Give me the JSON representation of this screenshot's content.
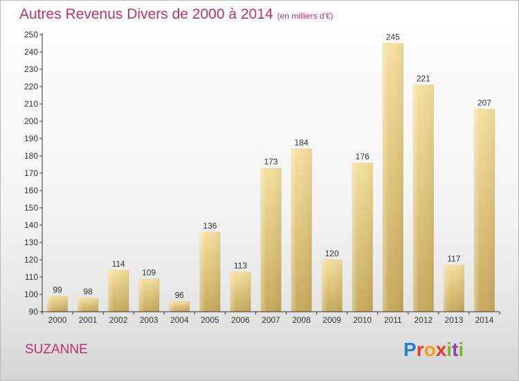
{
  "title": {
    "main": "Autres Revenus Divers de 2000 à 2014",
    "sub": "(en milliers d'€)"
  },
  "location": "SUZANNE",
  "logo": {
    "p": "P",
    "r": "r",
    "o": "o",
    "x": "x",
    "i": "i",
    "t": "t",
    "i2": "i"
  },
  "colors": {
    "title": "#c0306a",
    "bar_light": "#f3dc98",
    "bar_dark": "#c9ac62",
    "axis": "#333333"
  },
  "chart_data": {
    "type": "bar",
    "title": "Autres Revenus Divers de 2000 à 2014",
    "subtitle": "(en milliers d'€)",
    "categories": [
      "2000",
      "2001",
      "2002",
      "2003",
      "2004",
      "2005",
      "2006",
      "2007",
      "2008",
      "2009",
      "2010",
      "2011",
      "2012",
      "2013",
      "2014"
    ],
    "values": [
      99,
      98,
      114,
      109,
      96,
      136,
      113,
      173,
      184,
      120,
      176,
      245,
      221,
      117,
      207
    ],
    "ylim": [
      90,
      250
    ],
    "yticks": [
      90,
      100,
      110,
      120,
      130,
      140,
      150,
      160,
      170,
      180,
      190,
      200,
      210,
      220,
      230,
      240,
      250
    ],
    "grid": false,
    "legend": "none"
  }
}
